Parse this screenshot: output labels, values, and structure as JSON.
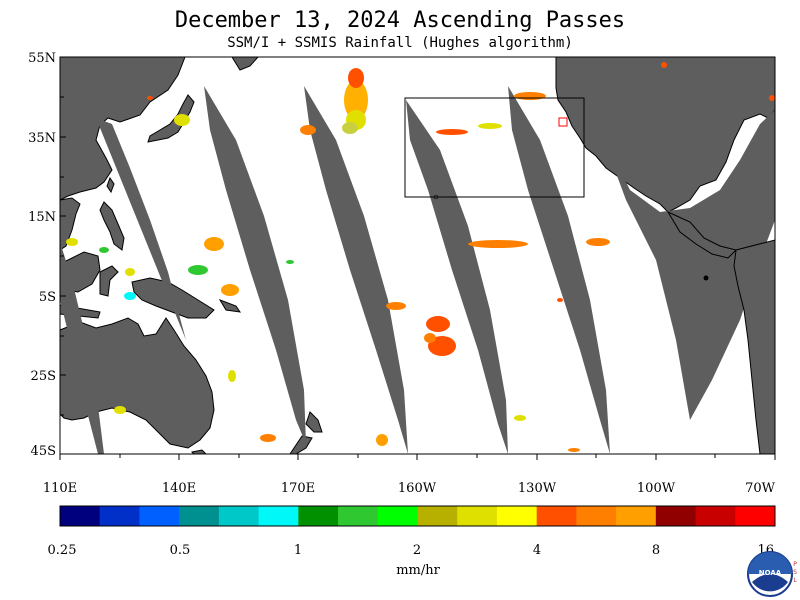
{
  "header": {
    "title": "December 13, 2024  Ascending Passes",
    "subtitle": "SSM/I + SSMIS Rainfall (Hughes algorithm)"
  },
  "map": {
    "lat_labels": [
      "55N",
      "35N",
      "15N",
      "5S",
      "25S",
      "45S"
    ],
    "lon_labels": [
      "110E",
      "140E",
      "170E",
      "160W",
      "130W",
      "100W",
      "70W"
    ],
    "colors": {
      "land": "#5e5e5e",
      "no_data_swath_gap": "#5e5e5e",
      "ocean": "#ffffff",
      "coastline": "#000000"
    }
  },
  "legend": {
    "tick_labels": [
      "0.25",
      "0.5",
      "1",
      "2",
      "4",
      "8",
      "16"
    ],
    "unit": "mm/hr",
    "colors": [
      "#00007f",
      "#0030c8",
      "#0060ff",
      "#009090",
      "#00c8c8",
      "#00f8f8",
      "#009000",
      "#30c830",
      "#00ff00",
      "#b8b000",
      "#e0e000",
      "#ffff00",
      "#ff5000",
      "#ff8000",
      "#ffa000",
      "#900000",
      "#c80000",
      "#ff0000"
    ]
  },
  "logo": {
    "name": "noaa-logo",
    "text": "NOAA",
    "side_text": "PSL"
  }
}
